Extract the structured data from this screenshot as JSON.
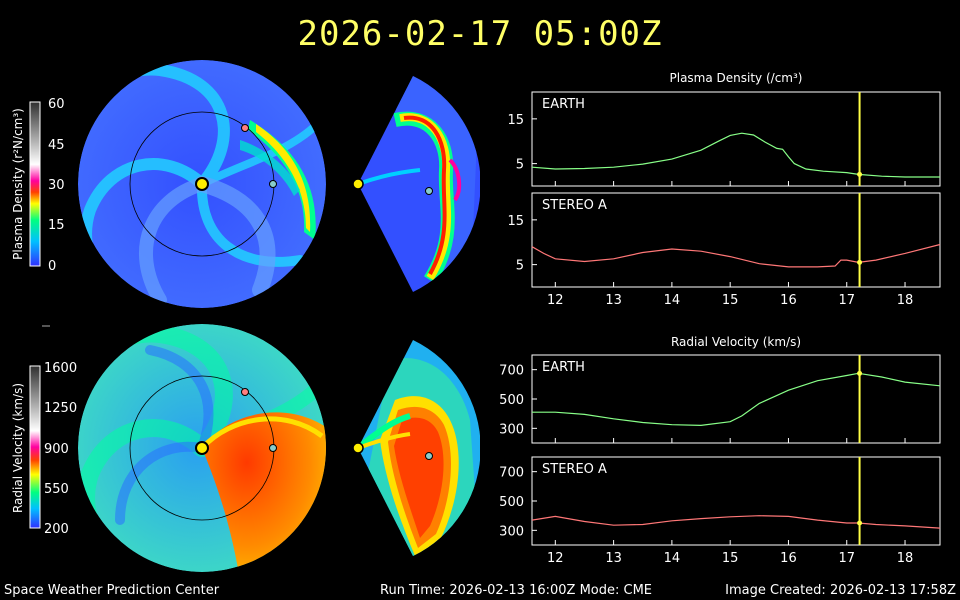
{
  "title": "2026-02-17  05:00Z",
  "footer": {
    "left": "Space Weather Prediction Center",
    "center": "Run Time: 2026-02-13 16:00Z  Mode: CME",
    "right": "Image Created: 2026-02-13 17:58Z"
  },
  "colorbars": {
    "density": {
      "label": "Plasma Density (r²N/cm³)",
      "ticks": [
        "60",
        "45",
        "30",
        "15",
        "0"
      ],
      "range": [
        0,
        60
      ]
    },
    "velocity": {
      "label": "Radial Velocity (km/s)",
      "ticks": [
        "1600",
        "1250",
        "900",
        "550",
        "200"
      ],
      "range": [
        200,
        1600
      ]
    }
  },
  "colors": {
    "title": "#ffff66",
    "earth_trace": "#88ff88",
    "stereo_trace": "#ff7777",
    "marker_line": "#ffff44",
    "earth_marker": "#88cccc",
    "stereo_marker": "#ff7f7f",
    "sun": "#ffee00"
  },
  "chart_data": [
    {
      "type": "line",
      "title": "Plasma Density (/cm³)",
      "panel": "EARTH",
      "x": [
        11.6,
        12.0,
        12.5,
        13.0,
        13.5,
        14.0,
        14.5,
        14.8,
        15.0,
        15.2,
        15.4,
        15.6,
        15.8,
        15.9,
        16.0,
        16.1,
        16.3,
        16.6,
        17.0,
        17.2,
        17.6,
        18.0,
        18.6
      ],
      "y": [
        4.2,
        3.8,
        3.9,
        4.2,
        4.9,
        6.0,
        8.0,
        10.0,
        11.3,
        11.8,
        11.4,
        9.8,
        8.4,
        8.2,
        6.5,
        5.0,
        3.8,
        3.3,
        3.0,
        2.6,
        2.2,
        2.0,
        2.0
      ],
      "yticks": [
        5,
        15
      ],
      "ylim": [
        0,
        21
      ],
      "xlim": [
        11.6,
        18.6
      ],
      "marker_x": 17.22,
      "marker_y": 2.6
    },
    {
      "type": "line",
      "title": "",
      "panel": "STEREO A",
      "x": [
        11.6,
        11.8,
        12.0,
        12.5,
        13.0,
        13.5,
        14.0,
        14.5,
        15.0,
        15.5,
        16.0,
        16.5,
        16.8,
        16.9,
        17.0,
        17.2,
        17.5,
        18.0,
        18.6
      ],
      "y": [
        9.0,
        7.5,
        6.3,
        5.7,
        6.3,
        7.7,
        8.5,
        8.0,
        6.8,
        5.2,
        4.5,
        4.5,
        4.7,
        6.0,
        6.0,
        5.5,
        6.0,
        7.5,
        9.5
      ],
      "yticks": [
        5,
        15
      ],
      "ylim": [
        0,
        21
      ],
      "xlim": [
        11.6,
        18.6
      ],
      "marker_x": 17.22,
      "marker_y": 5.5
    },
    {
      "type": "line",
      "title": "Radial Velocity (km/s)",
      "panel": "EARTH",
      "x": [
        11.6,
        12.0,
        12.5,
        13.0,
        13.5,
        14.0,
        14.5,
        15.0,
        15.2,
        15.5,
        16.0,
        16.5,
        17.0,
        17.2,
        17.6,
        18.0,
        18.6
      ],
      "y": [
        410,
        410,
        395,
        365,
        340,
        325,
        320,
        345,
        385,
        470,
        560,
        625,
        660,
        675,
        650,
        615,
        590
      ],
      "yticks": [
        300,
        500,
        700
      ],
      "ylim": [
        200,
        800
      ],
      "xlim": [
        11.6,
        18.6
      ],
      "marker_x": 17.22,
      "marker_y": 675
    },
    {
      "type": "line",
      "title": "",
      "panel": "STEREO A",
      "x": [
        11.6,
        12.0,
        12.5,
        13.0,
        13.5,
        14.0,
        14.5,
        15.0,
        15.5,
        16.0,
        16.5,
        17.0,
        17.2,
        17.5,
        18.0,
        18.6
      ],
      "y": [
        370,
        395,
        360,
        335,
        340,
        365,
        380,
        392,
        400,
        395,
        370,
        350,
        350,
        340,
        330,
        315
      ],
      "yticks": [
        300,
        500,
        700
      ],
      "ylim": [
        200,
        800
      ],
      "xlim": [
        11.6,
        18.6
      ],
      "marker_x": 17.22,
      "marker_y": 350
    }
  ],
  "xaxis_ticks": [
    "12",
    "13",
    "14",
    "15",
    "16",
    "17",
    "18"
  ]
}
